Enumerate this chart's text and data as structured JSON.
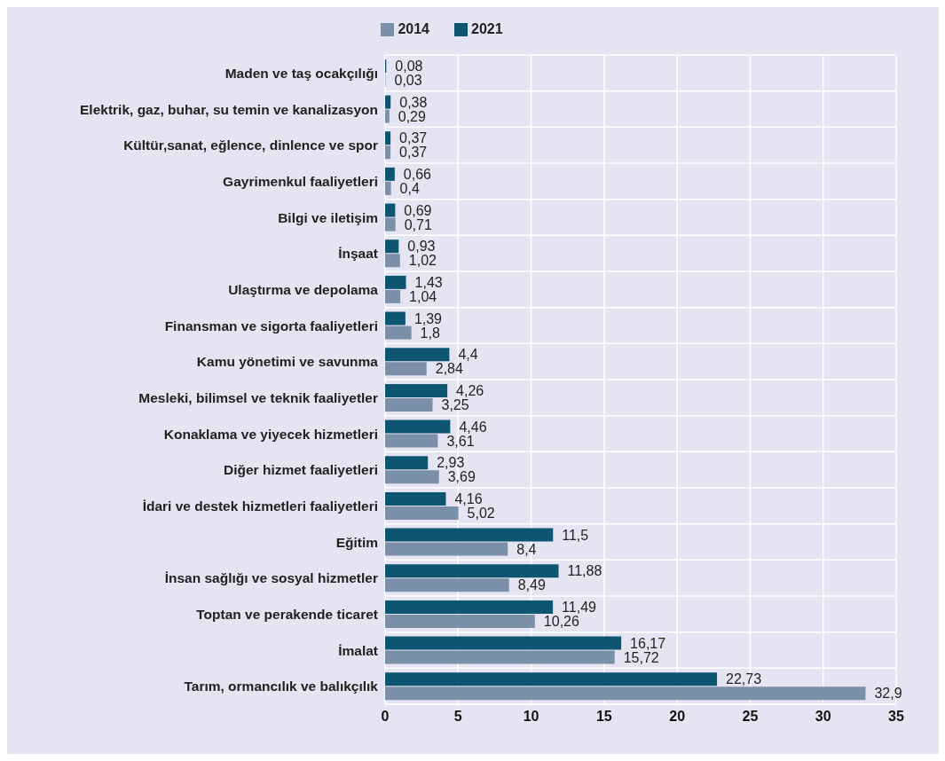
{
  "chart_data": {
    "type": "bar",
    "orientation": "horizontal",
    "categories": [
      "Maden ve taş ocakçılığı",
      "Elektrik, gaz, buhar, su temin ve kanalizasyon",
      "Kültür,sanat, eğlence, dinlence ve spor",
      "Gayrimenkul faaliyetleri",
      "Bilgi ve iletişim",
      "İnşaat",
      "Ulaştırma ve depolama",
      "Finansman ve sigorta faaliyetleri",
      "Kamu yönetimi ve savunma",
      "Mesleki, bilimsel ve teknik faaliyetler",
      "Konaklama ve yiyecek hizmetleri",
      "Diğer hizmet faaliyetleri",
      "İdari ve destek hizmetleri faaliyetleri",
      "Eğitim",
      "İnsan sağlığı ve sosyal hizmetler",
      "Toptan ve perakende ticaret",
      "İmalat",
      "Tarım, ormancılık ve balıkçılık"
    ],
    "series": [
      {
        "name": "2021",
        "color": "#0d5570",
        "values": [
          0.08,
          0.38,
          0.37,
          0.66,
          0.69,
          0.93,
          1.43,
          1.39,
          4.4,
          4.26,
          4.46,
          2.93,
          4.16,
          11.5,
          11.88,
          11.49,
          16.17,
          22.73
        ],
        "value_labels": [
          "0,08",
          "0,38",
          "0,37",
          "0,66",
          "0,69",
          "0,93",
          "1,43",
          "1,39",
          "4,4",
          "4,26",
          "4,46",
          "2,93",
          "4,16",
          "11,5",
          "11,88",
          "11,49",
          "16,17",
          "22,73"
        ]
      },
      {
        "name": "2014",
        "color": "#7b8fa8",
        "values": [
          0.03,
          0.29,
          0.37,
          0.4,
          0.71,
          1.02,
          1.04,
          1.8,
          2.84,
          3.25,
          3.61,
          3.69,
          5.02,
          8.4,
          8.49,
          10.26,
          15.72,
          32.9
        ],
        "value_labels": [
          "0,03",
          "0,29",
          "0,37",
          "0,4",
          "0,71",
          "1,02",
          "1,04",
          "1,8",
          "2,84",
          "3,25",
          "3,61",
          "3,69",
          "5,02",
          "8,4",
          "8,49",
          "10,26",
          "15,72",
          "32,9"
        ]
      }
    ],
    "xlim": [
      0,
      35
    ],
    "xticks": [
      0,
      5,
      10,
      15,
      20,
      25,
      30,
      35
    ],
    "grid": true,
    "legend": "top"
  }
}
